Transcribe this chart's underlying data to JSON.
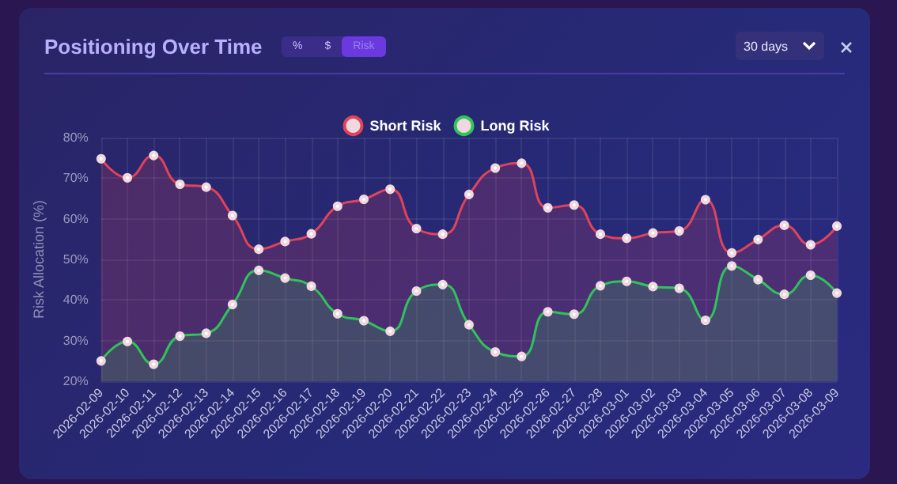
{
  "chart_data": {
    "type": "area",
    "title": "Positioning Over Time",
    "ylabel": "Risk Allocation (%)",
    "categories": [
      "2026-02-09",
      "2026-02-10",
      "2026-02-11",
      "2026-02-12",
      "2026-02-13",
      "2026-02-14",
      "2026-02-15",
      "2026-02-16",
      "2026-02-17",
      "2026-02-18",
      "2026-02-19",
      "2026-02-20",
      "2026-02-21",
      "2026-02-22",
      "2026-02-23",
      "2026-02-24",
      "2026-02-25",
      "2026-02-26",
      "2026-02-27",
      "2026-02-28",
      "2026-03-01",
      "2026-03-02",
      "2026-03-03",
      "2026-03-04",
      "2026-03-05",
      "2026-03-06",
      "2026-03-07",
      "2026-03-08",
      "2026-03-09"
    ],
    "series": [
      {
        "name": "Short Risk",
        "color": "#e0435a",
        "values": [
          74.8,
          70.1,
          75.6,
          68.5,
          67.8,
          60.8,
          52.5,
          54.4,
          56.3,
          63.1,
          64.8,
          67.3,
          57.6,
          56.2,
          66.0,
          72.5,
          73.7,
          62.7,
          63.4,
          56.2,
          55.2,
          56.5,
          57.0,
          64.7,
          51.6,
          54.9,
          58.4,
          53.6,
          58.2
        ]
      },
      {
        "name": "Long Risk",
        "color": "#2fc45a",
        "values": [
          25.0,
          29.8,
          24.2,
          31.1,
          31.8,
          38.9,
          47.3,
          45.4,
          43.4,
          36.6,
          34.9,
          32.3,
          42.2,
          43.8,
          33.9,
          27.2,
          26.1,
          37.1,
          36.5,
          43.5,
          44.6,
          43.3,
          42.9,
          35.0,
          48.4,
          45.0,
          41.4,
          46.1,
          41.7
        ]
      }
    ],
    "ylim": [
      20,
      80
    ],
    "yticks": [
      {
        "value": 20,
        "label": "20%"
      },
      {
        "value": 30,
        "label": "30%"
      },
      {
        "value": 40,
        "label": "40%"
      },
      {
        "value": 50,
        "label": "50%"
      },
      {
        "value": 60,
        "label": "60%"
      },
      {
        "value": 70,
        "label": "70%"
      },
      {
        "value": 80,
        "label": "80%"
      }
    ],
    "grid": true,
    "legend": "top",
    "marker": "circle",
    "annotations": [
      "%",
      "$",
      "Risk",
      "30 days"
    ]
  }
}
